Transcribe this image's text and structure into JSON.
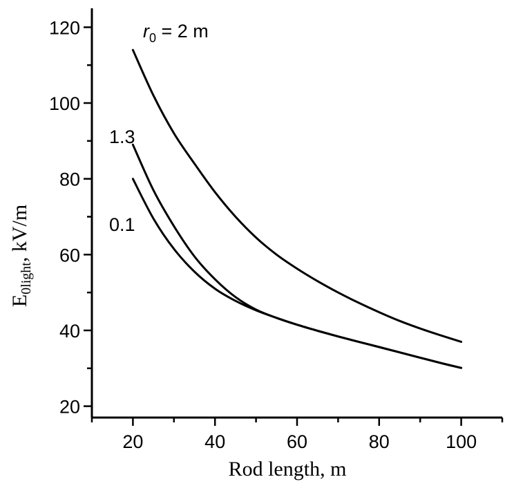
{
  "chart_data": {
    "type": "line",
    "xlabel": "Rod length,  m",
    "ylabel": {
      "main": "E",
      "subscript": "0light",
      "suffix": ",  kV/m"
    },
    "xlim": [
      10,
      110
    ],
    "ylim": [
      17,
      125
    ],
    "xticks": [
      20,
      40,
      60,
      80,
      100
    ],
    "yticks": [
      20,
      40,
      60,
      80,
      100,
      120
    ],
    "xticks_minor": [
      10,
      30,
      50,
      70,
      90,
      110
    ],
    "yticks_minor": [
      30,
      50,
      70,
      90,
      110
    ],
    "grid": false,
    "series": [
      {
        "name": "r0 = 2 m",
        "x": [
          20,
          25,
          30,
          35,
          40,
          45,
          50,
          55,
          60,
          65,
          70,
          75,
          80,
          85,
          90,
          95,
          100
        ],
        "y": [
          114,
          102,
          92,
          84,
          76.5,
          70,
          64.5,
          60,
          56.3,
          53,
          50,
          47.3,
          44.8,
          42.5,
          40.5,
          38.7,
          37
        ]
      },
      {
        "name": "1.3",
        "x": [
          20,
          25,
          30,
          35,
          40,
          45,
          50,
          55,
          60,
          65,
          70,
          75,
          80,
          85,
          90,
          95,
          100
        ],
        "y": [
          89,
          77,
          67.5,
          59.5,
          53.5,
          48.8,
          45.5,
          43.3,
          41.5,
          39.9,
          38.4,
          37,
          35.6,
          34.2,
          32.8,
          31.4,
          30.1
        ]
      },
      {
        "name": "0.1",
        "x": [
          20,
          25,
          30,
          35,
          40,
          45,
          50,
          55,
          60,
          65,
          70,
          75,
          80,
          85,
          90,
          95,
          100
        ],
        "y": [
          80,
          69.5,
          61.5,
          55.5,
          51,
          47.8,
          45.3,
          43.3,
          41.5,
          39.9,
          38.4,
          37,
          35.6,
          34.2,
          32.8,
          31.4,
          30.1
        ]
      }
    ],
    "annotations": [
      {
        "id": "r0-2",
        "text_main": "r",
        "text_sub": "0",
        "text_rest": " = 2 m"
      },
      {
        "id": "r0-13",
        "text": "1.3"
      },
      {
        "id": "r0-01",
        "text": "0.1"
      }
    ]
  }
}
